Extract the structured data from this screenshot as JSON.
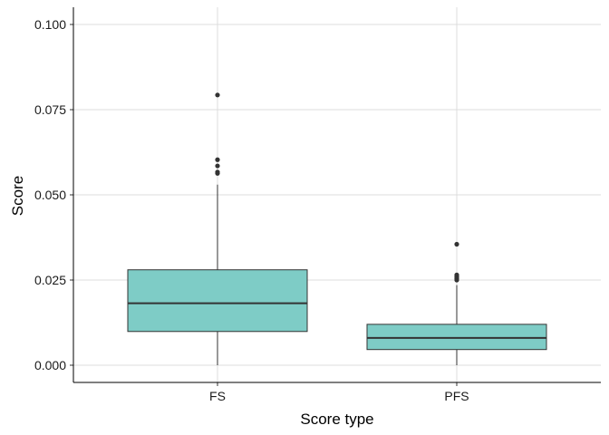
{
  "chart_data": {
    "type": "box",
    "xlabel": "Score type",
    "ylabel": "Score",
    "ylim": [
      -0.005,
      0.1
    ],
    "yticks": [
      0.0,
      0.025,
      0.05,
      0.075,
      0.1
    ],
    "ytick_labels": [
      "0.000",
      "0.025",
      "0.050",
      "0.075",
      "0.100"
    ],
    "categories": [
      "FS",
      "PFS"
    ],
    "grid": true,
    "fill_color": "#7ECCC6",
    "line_color": "#333333",
    "boxes": [
      {
        "category": "FS",
        "whisker_low": 0.0,
        "q1": 0.0099,
        "median": 0.0182,
        "q3": 0.028,
        "whisker_high": 0.053,
        "outliers": [
          0.0563,
          0.0567,
          0.0585,
          0.0603,
          0.0793
        ]
      },
      {
        "category": "PFS",
        "whisker_low": 0.0,
        "q1": 0.0046,
        "median": 0.008,
        "q3": 0.012,
        "whisker_high": 0.0235,
        "outliers": [
          0.025,
          0.0255,
          0.026,
          0.0265,
          0.0355
        ]
      }
    ]
  }
}
